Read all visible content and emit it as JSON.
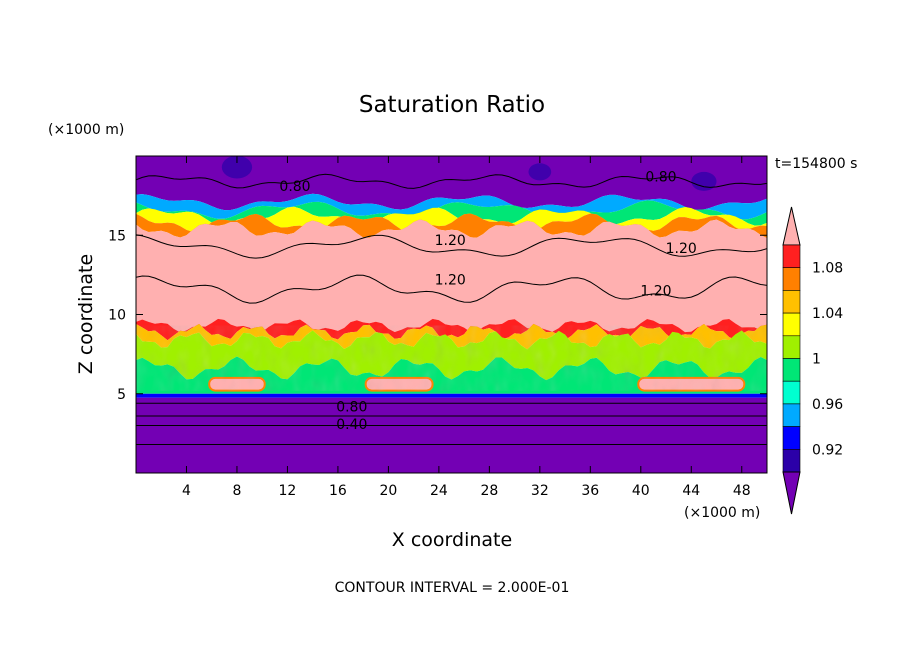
{
  "chart_data": {
    "type": "heatmap",
    "title": "Saturation Ratio",
    "xlabel": "X coordinate",
    "ylabel": "Z coordinate",
    "x_unit": "(×1000 m)",
    "y_unit": "(×1000 m)",
    "time_label": "t=154800 s",
    "footer": "CONTOUR INTERVAL = 2.000E-01",
    "xlim": [
      0,
      50
    ],
    "ylim": [
      0,
      20
    ],
    "x_ticks": [
      4,
      8,
      12,
      16,
      20,
      24,
      28,
      32,
      36,
      40,
      44,
      48
    ],
    "y_ticks": [
      5,
      10,
      15
    ],
    "colorbar": {
      "labels": [
        "1.08",
        "1.04",
        "1",
        "0.96",
        "0.92"
      ],
      "levels": [
        0.9,
        0.92,
        0.94,
        0.96,
        0.98,
        1.0,
        1.02,
        1.04,
        1.06,
        1.08,
        1.1
      ],
      "colors": [
        "#7300b4",
        "#2b00a8",
        "#0000ff",
        "#00aaff",
        "#00ffd0",
        "#00e676",
        "#a0f000",
        "#ffff00",
        "#ffc000",
        "#ff8000",
        "#ff2020",
        "#ffb0b0"
      ]
    },
    "contour_labels": [
      {
        "text": "0.80",
        "x": 12.6,
        "z": 18.1
      },
      {
        "text": "0.80",
        "x": 41.6,
        "z": 18.7
      },
      {
        "text": "1.20",
        "x": 24.9,
        "z": 14.7
      },
      {
        "text": "1.20",
        "x": 43.2,
        "z": 14.2
      },
      {
        "text": "1.20",
        "x": 24.9,
        "z": 12.2
      },
      {
        "text": "1.20",
        "x": 41.2,
        "z": 11.5
      },
      {
        "text": "0.80",
        "x": 17.1,
        "z": 4.2
      },
      {
        "text": "0.40",
        "x": 17.1,
        "z": 3.1
      }
    ],
    "grid": false
  }
}
